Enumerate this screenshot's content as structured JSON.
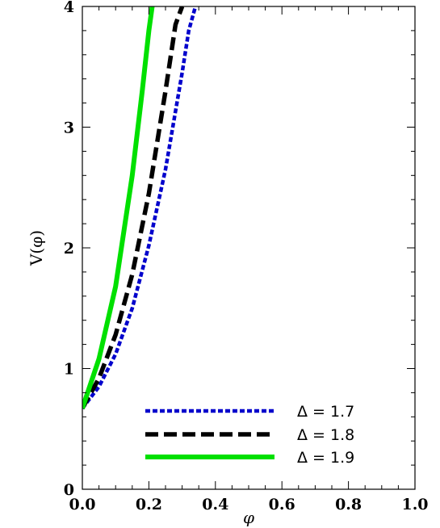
{
  "chart_data": {
    "type": "line",
    "title": "",
    "xlabel": "φ",
    "ylabel": "V(φ)",
    "xlim": [
      0.0,
      1.0
    ],
    "ylim": [
      0,
      4
    ],
    "x_ticks": [
      "0.0",
      "0.2",
      "0.4",
      "0.6",
      "0.8",
      "1.0"
    ],
    "y_ticks": [
      "0",
      "1",
      "2",
      "3",
      "4"
    ],
    "grid": false,
    "legend_position": "bottom-right",
    "series": [
      {
        "name": "Δ = 1.7",
        "color": "#0000cc",
        "style": "dotted",
        "x": [
          0.0,
          0.05,
          0.1,
          0.15,
          0.2,
          0.25,
          0.3,
          0.32,
          0.34
        ],
        "y": [
          0.67,
          0.85,
          1.12,
          1.5,
          2.02,
          2.65,
          3.45,
          3.8,
          4.0
        ]
      },
      {
        "name": "Δ = 1.8",
        "color": "#000000",
        "style": "dashed",
        "x": [
          0.0,
          0.05,
          0.1,
          0.15,
          0.2,
          0.25,
          0.28,
          0.3
        ],
        "y": [
          0.67,
          0.92,
          1.28,
          1.78,
          2.45,
          3.3,
          3.85,
          4.0
        ]
      },
      {
        "name": "Δ = 1.9",
        "color": "#00e000",
        "style": "solid",
        "x": [
          0.0,
          0.05,
          0.1,
          0.15,
          0.18,
          0.2,
          0.21
        ],
        "y": [
          0.67,
          1.08,
          1.68,
          2.6,
          3.3,
          3.8,
          4.0
        ]
      }
    ]
  }
}
